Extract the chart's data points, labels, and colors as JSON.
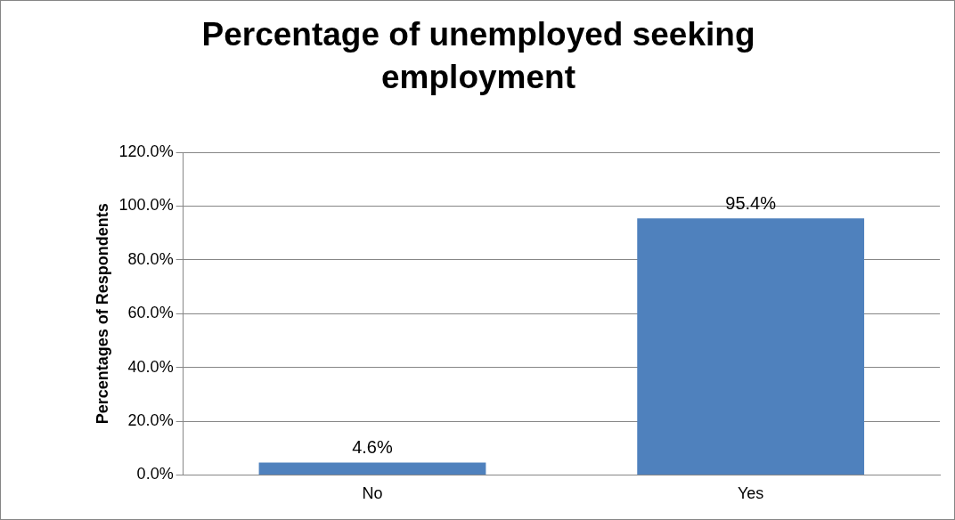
{
  "chart_data": {
    "type": "bar",
    "title": "Percentage of unemployed seeking employment",
    "ylabel": "Percentages of Respondents",
    "categories": [
      "No",
      "Yes"
    ],
    "values": [
      4.6,
      95.4
    ],
    "value_labels": [
      "4.6%",
      "95.4%"
    ],
    "color": "#4f81bd",
    "ylim": [
      0,
      120
    ],
    "yticks": [
      {
        "value": 0,
        "label": "0.0%"
      },
      {
        "value": 20,
        "label": "20.0%"
      },
      {
        "value": 40,
        "label": "40.0%"
      },
      {
        "value": 60,
        "label": "60.0%"
      },
      {
        "value": 80,
        "label": "80.0%"
      },
      {
        "value": 100,
        "label": "100.0%"
      },
      {
        "value": 120,
        "label": "120.0%"
      }
    ],
    "grid": "y",
    "legend": false
  }
}
